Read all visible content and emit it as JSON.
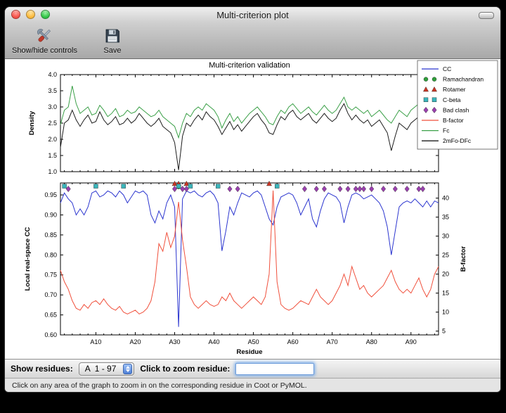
{
  "window": {
    "title": "Multi-criterion plot"
  },
  "toolbar": {
    "items": [
      {
        "label": "Show/hide controls",
        "icon": "tools-icon"
      },
      {
        "label": "Save",
        "icon": "save-icon"
      }
    ]
  },
  "controls": {
    "show_residues_label": "Show residues:",
    "residue_range_value": "A  1 - 97",
    "zoom_label": "Click to zoom residue:",
    "zoom_input_value": ""
  },
  "status_bar": {
    "text": "Click on any area of the graph to zoom in on the corresponding residue in Coot or PyMOL."
  },
  "chart_data": {
    "type": "line",
    "title": "Multi-criterion validation",
    "x_label": "Residue",
    "x_range": [
      1,
      97
    ],
    "x_major_ticks": [
      10,
      20,
      30,
      40,
      50,
      60,
      70,
      80,
      90
    ],
    "x_tick_prefix": "A",
    "top_plot": {
      "y_label": "Density",
      "y_lim": [
        1.0,
        4.0
      ],
      "y_ticks": [
        1.0,
        1.5,
        2.0,
        2.5,
        3.0,
        3.5,
        4.0
      ],
      "series": [
        {
          "name": "Fc",
          "color": "#3ba048",
          "values": [
            2.45,
            2.9,
            3.0,
            3.65,
            3.1,
            2.8,
            2.9,
            3.0,
            2.75,
            2.8,
            3.05,
            2.9,
            2.7,
            2.8,
            2.95,
            2.7,
            2.75,
            2.9,
            2.8,
            2.85,
            3.0,
            2.9,
            2.8,
            2.7,
            2.75,
            2.9,
            2.7,
            2.6,
            2.5,
            2.4,
            2.05,
            2.5,
            2.8,
            2.7,
            2.9,
            3.0,
            2.9,
            3.1,
            3.0,
            2.9,
            2.7,
            2.35,
            2.6,
            2.8,
            2.55,
            2.7,
            2.5,
            2.65,
            2.8,
            2.9,
            3.0,
            2.85,
            2.7,
            2.5,
            2.45,
            2.7,
            2.9,
            2.8,
            3.0,
            3.1,
            2.95,
            2.8,
            2.9,
            3.0,
            2.85,
            2.75,
            2.9,
            3.05,
            2.9,
            2.8,
            2.9,
            3.1,
            3.3,
            3.0,
            2.9,
            3.0,
            2.9,
            2.8,
            2.9,
            2.7,
            2.8,
            2.9,
            2.75,
            2.6,
            2.5,
            2.7,
            2.9,
            2.8,
            2.7,
            2.9,
            3.0,
            3.1,
            2.9,
            3.5,
            3.2,
            3.45,
            2.6
          ]
        },
        {
          "name": "2mFo-DFc",
          "color": "#1c1c1c",
          "values": [
            1.75,
            2.5,
            2.6,
            2.9,
            2.6,
            2.4,
            2.6,
            2.75,
            2.5,
            2.55,
            2.85,
            2.6,
            2.45,
            2.55,
            2.7,
            2.45,
            2.5,
            2.65,
            2.5,
            2.6,
            2.8,
            2.65,
            2.5,
            2.4,
            2.5,
            2.65,
            2.4,
            2.3,
            2.2,
            1.9,
            1.05,
            2.1,
            2.5,
            2.4,
            2.6,
            2.75,
            2.6,
            2.85,
            2.7,
            2.6,
            2.4,
            2.15,
            2.35,
            2.55,
            2.3,
            2.45,
            2.25,
            2.4,
            2.55,
            2.7,
            2.8,
            2.6,
            2.45,
            2.2,
            2.15,
            2.45,
            2.7,
            2.6,
            2.8,
            2.9,
            2.7,
            2.6,
            2.7,
            2.8,
            2.6,
            2.5,
            2.65,
            2.8,
            2.65,
            2.55,
            2.65,
            2.9,
            3.1,
            2.8,
            2.6,
            2.75,
            2.6,
            2.5,
            2.6,
            2.4,
            2.5,
            2.6,
            2.4,
            2.2,
            1.65,
            2.1,
            2.5,
            2.4,
            2.3,
            2.5,
            2.6,
            2.7,
            2.5,
            3.3,
            2.8,
            3.1,
            2.35
          ]
        }
      ]
    },
    "bottom_plot": {
      "y_label_left": "Local real-space CC",
      "y_lim_left": [
        0.6,
        0.98
      ],
      "y_ticks_left": [
        0.6,
        0.65,
        0.7,
        0.75,
        0.8,
        0.85,
        0.9,
        0.95
      ],
      "y_label_right": "B-factor",
      "y_lim_right": [
        4.0,
        44.0
      ],
      "y_ticks_right": [
        5,
        10,
        15,
        20,
        25,
        30,
        35,
        40
      ],
      "series": [
        {
          "name": "CC",
          "axis": "left",
          "color": "#2b35cf",
          "values": [
            0.93,
            0.955,
            0.94,
            0.93,
            0.9,
            0.915,
            0.9,
            0.92,
            0.955,
            0.96,
            0.945,
            0.95,
            0.96,
            0.955,
            0.945,
            0.96,
            0.95,
            0.93,
            0.945,
            0.96,
            0.955,
            0.96,
            0.95,
            0.9,
            0.88,
            0.91,
            0.89,
            0.93,
            0.95,
            0.92,
            0.62,
            0.94,
            0.96,
            0.955,
            0.96,
            0.95,
            0.945,
            0.955,
            0.96,
            0.95,
            0.93,
            0.81,
            0.86,
            0.92,
            0.9,
            0.93,
            0.955,
            0.95,
            0.945,
            0.955,
            0.96,
            0.95,
            0.92,
            0.89,
            0.875,
            0.92,
            0.945,
            0.95,
            0.955,
            0.95,
            0.93,
            0.9,
            0.92,
            0.94,
            0.89,
            0.87,
            0.91,
            0.94,
            0.955,
            0.95,
            0.945,
            0.93,
            0.88,
            0.92,
            0.95,
            0.955,
            0.95,
            0.94,
            0.945,
            0.95,
            0.94,
            0.93,
            0.91,
            0.87,
            0.8,
            0.86,
            0.92,
            0.93,
            0.935,
            0.93,
            0.94,
            0.93,
            0.92,
            0.935,
            0.92,
            0.935,
            0.93
          ]
        },
        {
          "name": "B-factor",
          "axis": "right",
          "color": "#f0503c",
          "values": [
            21,
            18,
            16,
            13,
            11,
            10.5,
            12,
            11,
            12.5,
            13,
            12,
            13.5,
            12,
            11,
            10.5,
            11.5,
            10,
            9.5,
            10,
            10.5,
            9.5,
            10,
            11,
            13,
            18,
            28,
            26,
            31,
            27,
            30,
            39,
            29,
            22,
            14,
            12,
            11,
            12,
            13,
            12,
            11.5,
            12,
            14,
            13,
            15,
            13,
            12,
            11,
            12,
            13,
            14,
            13,
            12,
            14,
            20,
            42,
            18,
            12,
            11,
            10.5,
            11,
            12,
            13,
            12.5,
            12,
            14,
            16,
            14,
            13,
            12,
            13,
            15,
            17,
            20,
            17,
            22,
            19,
            16,
            17,
            15,
            14,
            15,
            16,
            17,
            19,
            21,
            18,
            16,
            15,
            16,
            15,
            17,
            19,
            16,
            14,
            16,
            20,
            22
          ]
        }
      ],
      "markers": [
        {
          "name": "Ramachandran",
          "shape": "circle",
          "color": "#2e9e3a",
          "y": 0.97,
          "residues": [
            31
          ]
        },
        {
          "name": "Rotamer",
          "shape": "triangle",
          "color": "#cc3524",
          "y": 0.978,
          "residues": [
            30,
            31,
            33,
            54
          ]
        },
        {
          "name": "C-beta",
          "shape": "square",
          "color": "#3ab5bb",
          "y": 0.972,
          "residues": [
            2,
            10,
            17,
            31,
            34,
            41,
            56
          ]
        },
        {
          "name": "Bad clash",
          "shape": "diamond",
          "color": "#9a3fae",
          "y": 0.965,
          "residues": [
            3,
            30,
            32,
            33,
            44,
            46,
            63,
            66,
            68,
            72,
            74,
            76,
            77,
            78,
            80,
            83,
            86,
            89,
            92,
            93
          ]
        }
      ]
    },
    "legend": [
      {
        "label": "CC",
        "type": "line",
        "color": "#2b35cf"
      },
      {
        "label": "Ramachandran",
        "type": "circle",
        "color": "#2e9e3a"
      },
      {
        "label": "Rotamer",
        "type": "triangle",
        "color": "#cc3524"
      },
      {
        "label": "C-beta",
        "type": "square",
        "color": "#3ab5bb"
      },
      {
        "label": "Bad clash",
        "type": "diamond",
        "color": "#9a3fae"
      },
      {
        "label": "B-factor",
        "type": "line",
        "color": "#f0503c"
      },
      {
        "label": "Fc",
        "type": "line",
        "color": "#3ba048"
      },
      {
        "label": "2mFo-DFc",
        "type": "line",
        "color": "#1c1c1c"
      }
    ]
  }
}
